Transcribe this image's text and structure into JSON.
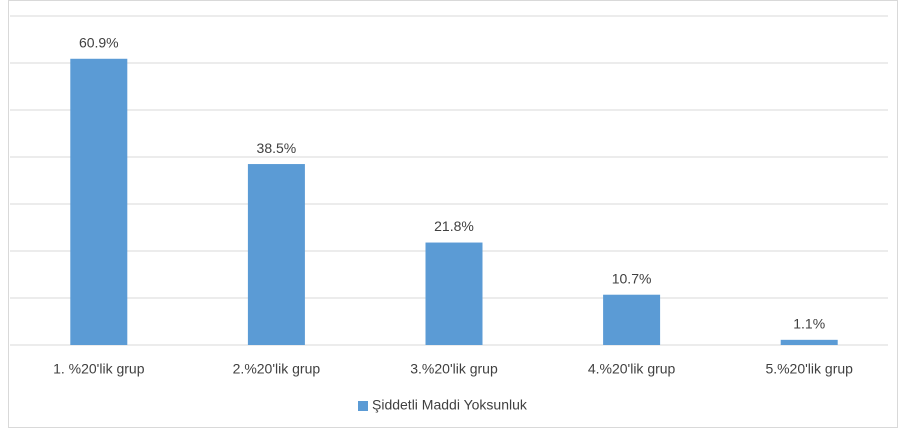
{
  "chart_data": {
    "type": "bar",
    "categories": [
      "1. %20'lik grup",
      "2.%20'lik grup",
      "3.%20'lik grup",
      "4.%20'lik grup",
      "5.%20'lik grup"
    ],
    "series": [
      {
        "name": "Şiddetli Maddi Yoksunluk",
        "color": "#5b9bd5",
        "values": [
          60.9,
          38.5,
          21.8,
          10.7,
          1.1
        ],
        "value_labels": [
          "60.9%",
          "38.5%",
          "21.8%",
          "10.7%",
          "1.1%"
        ]
      }
    ],
    "ylim": [
      0,
      70
    ],
    "yticks": [
      0,
      10,
      20,
      30,
      40,
      50,
      60,
      70
    ],
    "grid": true,
    "legend": "bottom"
  }
}
